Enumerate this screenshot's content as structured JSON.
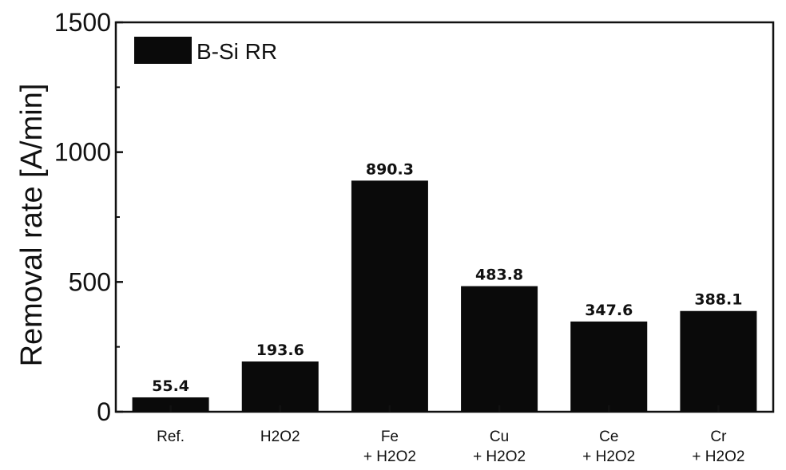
{
  "chart_data": {
    "type": "bar",
    "categories": [
      [
        "Ref."
      ],
      [
        "H2O2"
      ],
      [
        "Fe",
        "+ H2O2"
      ],
      [
        "Cu",
        "+ H2O2"
      ],
      [
        "Ce",
        "+ H2O2"
      ],
      [
        "Cr",
        "+ H2O2"
      ]
    ],
    "series": [
      {
        "name": "B-Si RR",
        "values": [
          55.4,
          193.6,
          890.3,
          483.8,
          347.6,
          388.1
        ],
        "value_labels": [
          "55.4",
          "193.6",
          "890.3",
          "483.8",
          "347.6",
          "388.1"
        ]
      }
    ],
    "title": "",
    "xlabel": "",
    "ylabel": "Removal rate [A/min]",
    "ylim": [
      0,
      1500
    ],
    "yticks": [
      0,
      500,
      1000,
      1500
    ],
    "grid": false,
    "legend": "top-left",
    "bar_color": "#0a0a0a"
  }
}
